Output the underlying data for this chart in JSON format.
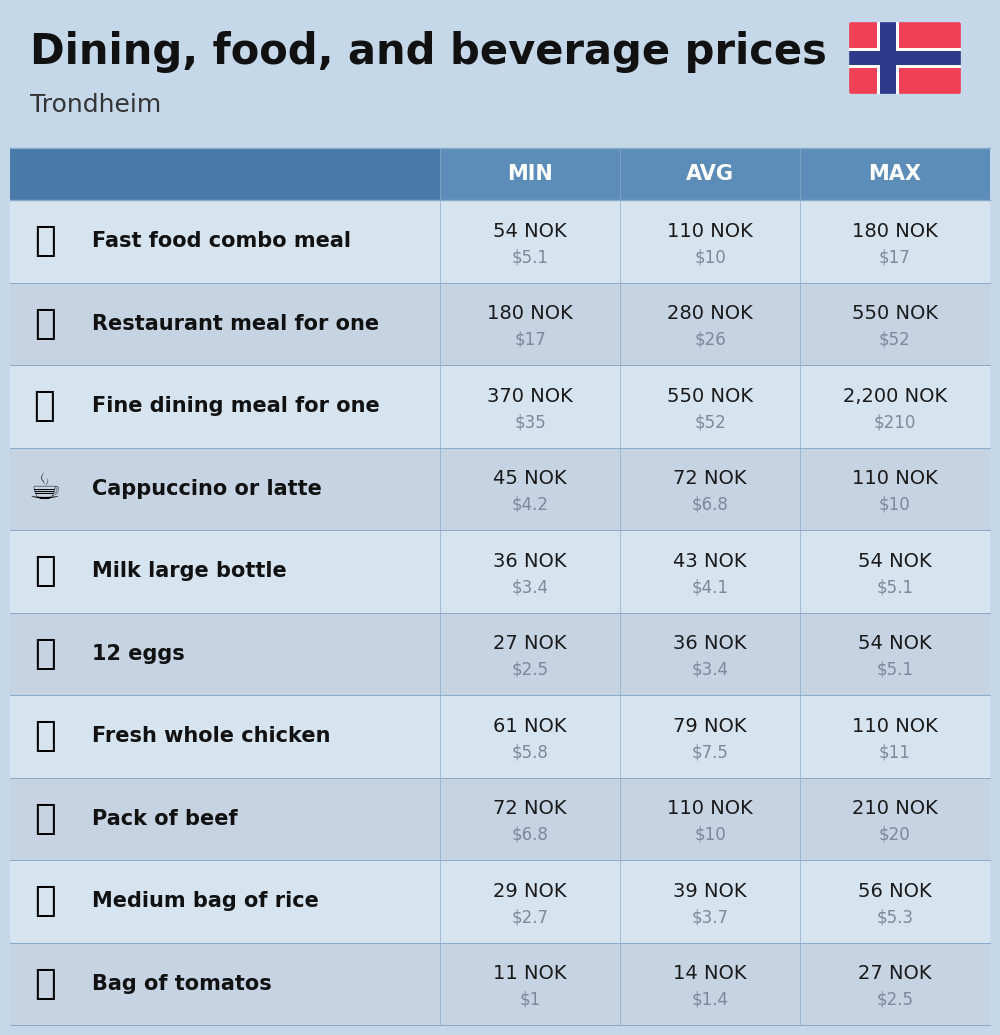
{
  "title": "Dining, food, and beverage prices",
  "subtitle": "Trondheim",
  "bg_color": "#c5d8ea",
  "header_bg": "#5b8db8",
  "header_text_color": "#ffffff",
  "row_bg_light": "#d6e4f0",
  "row_bg_dark": "#c5d3e3",
  "item_text_color": "#111111",
  "value_nok_color": "#1a1a1a",
  "value_usd_color": "#7a8a9a",
  "columns": [
    "MIN",
    "AVG",
    "MAX"
  ],
  "rows": [
    {
      "label": "Fast food combo meal",
      "min_nok": "54 NOK",
      "min_usd": "$5.1",
      "avg_nok": "110 NOK",
      "avg_usd": "$10",
      "max_nok": "180 NOK",
      "max_usd": "$17"
    },
    {
      "label": "Restaurant meal for one",
      "min_nok": "180 NOK",
      "min_usd": "$17",
      "avg_nok": "280 NOK",
      "avg_usd": "$26",
      "max_nok": "550 NOK",
      "max_usd": "$52"
    },
    {
      "label": "Fine dining meal for one",
      "min_nok": "370 NOK",
      "min_usd": "$35",
      "avg_nok": "550 NOK",
      "avg_usd": "$52",
      "max_nok": "2,200 NOK",
      "max_usd": "$210"
    },
    {
      "label": "Cappuccino or latte",
      "min_nok": "45 NOK",
      "min_usd": "$4.2",
      "avg_nok": "72 NOK",
      "avg_usd": "$6.8",
      "max_nok": "110 NOK",
      "max_usd": "$10"
    },
    {
      "label": "Milk large bottle",
      "min_nok": "36 NOK",
      "min_usd": "$3.4",
      "avg_nok": "43 NOK",
      "avg_usd": "$4.1",
      "max_nok": "54 NOK",
      "max_usd": "$5.1"
    },
    {
      "label": "12 eggs",
      "min_nok": "27 NOK",
      "min_usd": "$2.5",
      "avg_nok": "36 NOK",
      "avg_usd": "$3.4",
      "max_nok": "54 NOK",
      "max_usd": "$5.1"
    },
    {
      "label": "Fresh whole chicken",
      "min_nok": "61 NOK",
      "min_usd": "$5.8",
      "avg_nok": "79 NOK",
      "avg_usd": "$7.5",
      "max_nok": "110 NOK",
      "max_usd": "$11"
    },
    {
      "label": "Pack of beef",
      "min_nok": "72 NOK",
      "min_usd": "$6.8",
      "avg_nok": "110 NOK",
      "avg_usd": "$10",
      "max_nok": "210 NOK",
      "max_usd": "$20"
    },
    {
      "label": "Medium bag of rice",
      "min_nok": "29 NOK",
      "min_usd": "$2.7",
      "avg_nok": "39 NOK",
      "avg_usd": "$3.7",
      "max_nok": "56 NOK",
      "max_usd": "$5.3"
    },
    {
      "label": "Bag of tomatos",
      "min_nok": "11 NOK",
      "min_usd": "$1",
      "avg_nok": "14 NOK",
      "avg_usd": "$1.4",
      "max_nok": "27 NOK",
      "max_usd": "$2.5"
    }
  ],
  "flag_red": "#EF4056",
  "flag_blue": "#2E3B8C",
  "flag_white": "#FFFFFF"
}
